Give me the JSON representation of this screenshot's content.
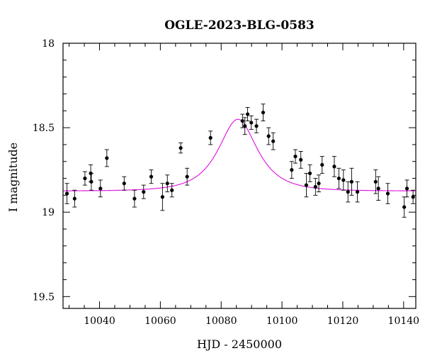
{
  "chart_data": {
    "type": "scatter",
    "title": "OGLE-2023-BLG-0583",
    "xlabel": "HJD - 2450000",
    "ylabel": "I magnitude",
    "xlim": [
      10028,
      10144
    ],
    "ylim": [
      18.0,
      19.57
    ],
    "y_inverted": true,
    "x_major_ticks": [
      10040,
      10060,
      10080,
      10100,
      10120,
      10140
    ],
    "x_tick_labels": [
      "10040",
      "10060",
      "10080",
      "10100",
      "10120",
      "10140"
    ],
    "y_major_ticks": [
      18.0,
      18.5,
      19.0,
      19.5
    ],
    "y_tick_labels": [
      "18",
      "18.5",
      "19",
      "19.5"
    ],
    "grid": false,
    "colors": {
      "model": "#e020e0",
      "points": "#000000"
    },
    "series": [
      {
        "kind": "points",
        "x": [
          10029.3,
          10031.8,
          10035.2,
          10037.1,
          10037.3,
          10040.3,
          10042.4,
          10048.1,
          10051.5,
          10054.5,
          10057.0,
          10060.7,
          10062.3,
          10063.8,
          10066.7,
          10068.8,
          10076.5,
          10087.0,
          10087.8,
          10088.7,
          10089.9,
          10091.6,
          10093.8,
          10095.6,
          10097.1,
          10103.2,
          10104.4,
          10106.2,
          10108.0,
          10109.2,
          10111.0,
          10112.1,
          10113.2,
          10117.2,
          10118.7,
          10120.2,
          10121.7,
          10122.9,
          10124.8,
          10130.8,
          10131.7,
          10134.8,
          10140.2,
          10141.1,
          10143.1
        ],
        "y": [
          18.89,
          18.92,
          18.8,
          18.77,
          18.82,
          18.86,
          18.68,
          18.83,
          18.92,
          18.88,
          18.79,
          18.91,
          18.83,
          18.87,
          18.62,
          18.79,
          18.56,
          18.46,
          18.49,
          18.42,
          18.47,
          18.49,
          18.41,
          18.55,
          18.58,
          18.75,
          18.67,
          18.69,
          18.84,
          18.77,
          18.85,
          18.83,
          18.72,
          18.73,
          18.8,
          18.81,
          18.88,
          18.82,
          18.88,
          18.82,
          18.86,
          18.89,
          18.97,
          18.86,
          18.91
        ],
        "yerr": [
          0.06,
          0.05,
          0.04,
          0.05,
          0.05,
          0.05,
          0.05,
          0.04,
          0.05,
          0.04,
          0.04,
          0.08,
          0.05,
          0.04,
          0.03,
          0.05,
          0.04,
          0.04,
          0.05,
          0.04,
          0.04,
          0.04,
          0.05,
          0.05,
          0.05,
          0.05,
          0.04,
          0.05,
          0.07,
          0.05,
          0.05,
          0.05,
          0.05,
          0.06,
          0.06,
          0.06,
          0.06,
          0.08,
          0.06,
          0.07,
          0.07,
          0.06,
          0.06,
          0.05,
          0.04
        ]
      },
      {
        "kind": "model",
        "t0": 10085.5,
        "tE": 10.0,
        "u0": 0.75,
        "baseline_mag": 18.875,
        "peak_mag": 18.45
      }
    ]
  }
}
